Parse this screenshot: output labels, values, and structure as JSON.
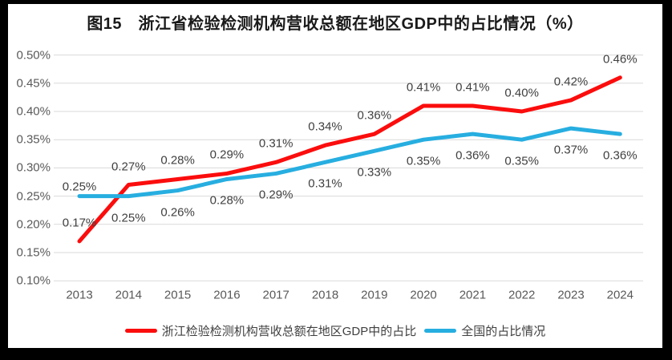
{
  "title": "图15　浙江省检验检测机构营收总额在地区GDP中的占比情况（%）",
  "chart_data": {
    "type": "line",
    "title": "图15　浙江省检验检测机构营收总额在地区GDP中的占比情况（%）",
    "categories": [
      "2013",
      "2014",
      "2015",
      "2016",
      "2017",
      "2018",
      "2019",
      "2020",
      "2021",
      "2022",
      "2023",
      "2024"
    ],
    "series": [
      {
        "name": "浙江检验检测机构营收总额在地区GDP中的占比",
        "color": "#fb0d0d",
        "values": [
          0.17,
          0.27,
          0.28,
          0.29,
          0.31,
          0.34,
          0.36,
          0.41,
          0.41,
          0.4,
          0.42,
          0.46
        ],
        "point_labels": [
          "0.17%",
          "0.27%",
          "0.28%",
          "0.29%",
          "0.31%",
          "0.34%",
          "0.36%",
          "0.41%",
          "0.41%",
          "0.40%",
          "0.42%",
          "0.46%"
        ],
        "label_sides": [
          "above",
          "above",
          "above",
          "above",
          "above",
          "above",
          "above",
          "above",
          "above",
          "above",
          "above",
          "above"
        ]
      },
      {
        "name": "全国的占比情况",
        "color": "#27aee0",
        "values": [
          0.25,
          0.25,
          0.26,
          0.28,
          0.29,
          0.31,
          0.33,
          0.35,
          0.36,
          0.35,
          0.37,
          0.36
        ],
        "point_labels": [
          "0.25%",
          "0.25%",
          "0.26%",
          "0.28%",
          "0.29%",
          "0.31%",
          "0.33%",
          "0.35%",
          "0.36%",
          "0.35%",
          "0.37%",
          "0.36%"
        ],
        "label_sides": [
          "above",
          "below",
          "below",
          "below",
          "below",
          "below",
          "below",
          "below",
          "below",
          "below",
          "below",
          "below"
        ]
      }
    ],
    "ytick_labels": [
      "0.50%",
      "0.45%",
      "0.40%",
      "0.35%",
      "0.30%",
      "0.25%",
      "0.20%",
      "0.15%",
      "0.10%"
    ],
    "ytick_values": [
      0.5,
      0.45,
      0.4,
      0.35,
      0.3,
      0.25,
      0.2,
      0.15,
      0.1
    ],
    "ylim": [
      0.1,
      0.5
    ],
    "xlabel": "",
    "ylabel": "",
    "grid": true,
    "gridline_color": "#d9d9d9",
    "legend_position": "bottom"
  }
}
